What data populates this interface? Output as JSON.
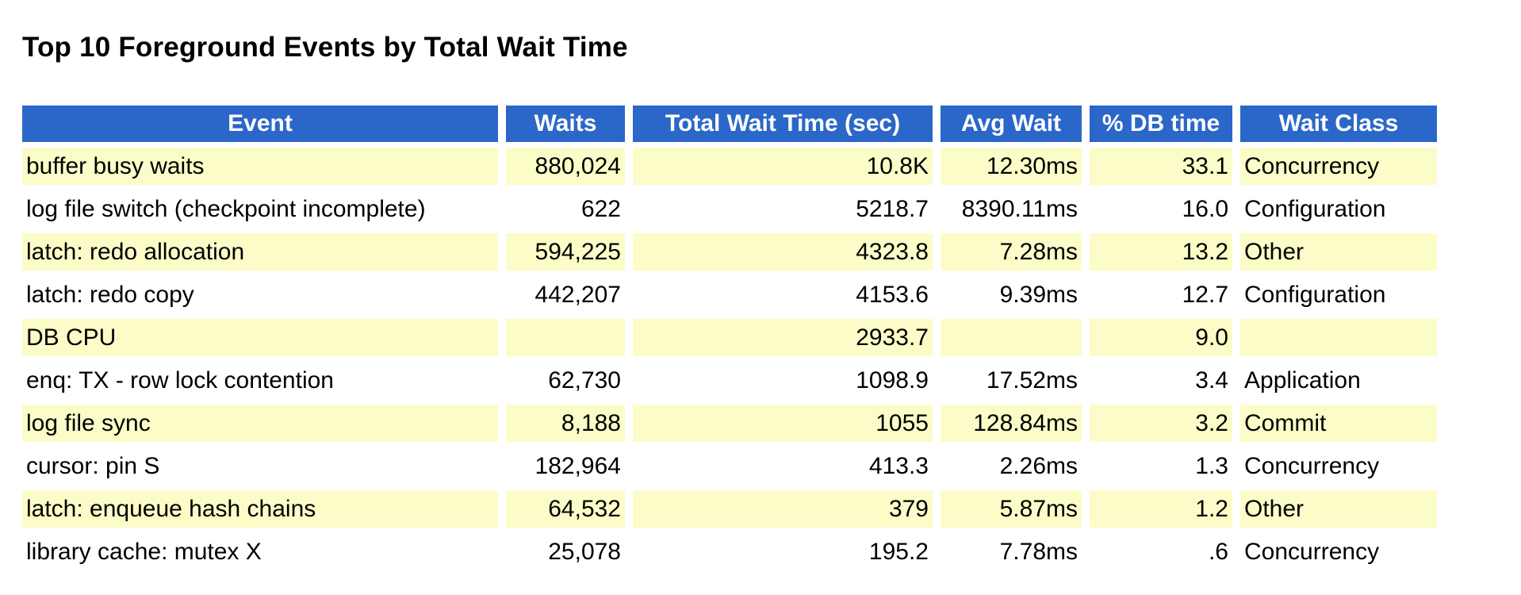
{
  "page": {
    "title": "Top 10 Foreground Events by Total Wait Time"
  },
  "colors": {
    "header_bg": "#2b67c8",
    "header_text": "#ffffff",
    "row_alt_bg": "#fcfcc8",
    "row_bg": "#ffffff",
    "page_bg": "#ffffff",
    "text": "#000000"
  },
  "table": {
    "columns": [
      {
        "key": "event",
        "label": "Event",
        "align": "left"
      },
      {
        "key": "waits",
        "label": "Waits",
        "align": "right"
      },
      {
        "key": "total_wait_time",
        "label": "Total Wait Time (sec)",
        "align": "right"
      },
      {
        "key": "avg_wait",
        "label": "Avg Wait",
        "align": "right"
      },
      {
        "key": "pct_db_time",
        "label": "% DB time",
        "align": "right"
      },
      {
        "key": "wait_class",
        "label": "Wait Class",
        "align": "left"
      }
    ],
    "rows": [
      {
        "event": "buffer busy waits",
        "waits": "880,024",
        "total_wait_time": "10.8K",
        "avg_wait": "12.30ms",
        "pct_db_time": "33.1",
        "wait_class": "Concurrency"
      },
      {
        "event": "log file switch (checkpoint incomplete)",
        "waits": "622",
        "total_wait_time": "5218.7",
        "avg_wait": "8390.11ms",
        "pct_db_time": "16.0",
        "wait_class": "Configuration"
      },
      {
        "event": "latch: redo allocation",
        "waits": "594,225",
        "total_wait_time": "4323.8",
        "avg_wait": "7.28ms",
        "pct_db_time": "13.2",
        "wait_class": "Other"
      },
      {
        "event": "latch: redo copy",
        "waits": "442,207",
        "total_wait_time": "4153.6",
        "avg_wait": "9.39ms",
        "pct_db_time": "12.7",
        "wait_class": "Configuration"
      },
      {
        "event": "DB CPU",
        "waits": "",
        "total_wait_time": "2933.7",
        "avg_wait": "",
        "pct_db_time": "9.0",
        "wait_class": ""
      },
      {
        "event": "enq: TX - row lock contention",
        "waits": "62,730",
        "total_wait_time": "1098.9",
        "avg_wait": "17.52ms",
        "pct_db_time": "3.4",
        "wait_class": "Application"
      },
      {
        "event": "log file sync",
        "waits": "8,188",
        "total_wait_time": "1055",
        "avg_wait": "128.84ms",
        "pct_db_time": "3.2",
        "wait_class": "Commit"
      },
      {
        "event": "cursor: pin S",
        "waits": "182,964",
        "total_wait_time": "413.3",
        "avg_wait": "2.26ms",
        "pct_db_time": "1.3",
        "wait_class": "Concurrency"
      },
      {
        "event": "latch: enqueue hash chains",
        "waits": "64,532",
        "total_wait_time": "379",
        "avg_wait": "5.87ms",
        "pct_db_time": "1.2",
        "wait_class": "Other"
      },
      {
        "event": "library cache: mutex X",
        "waits": "25,078",
        "total_wait_time": "195.2",
        "avg_wait": "7.78ms",
        "pct_db_time": ".6",
        "wait_class": "Concurrency"
      }
    ]
  }
}
